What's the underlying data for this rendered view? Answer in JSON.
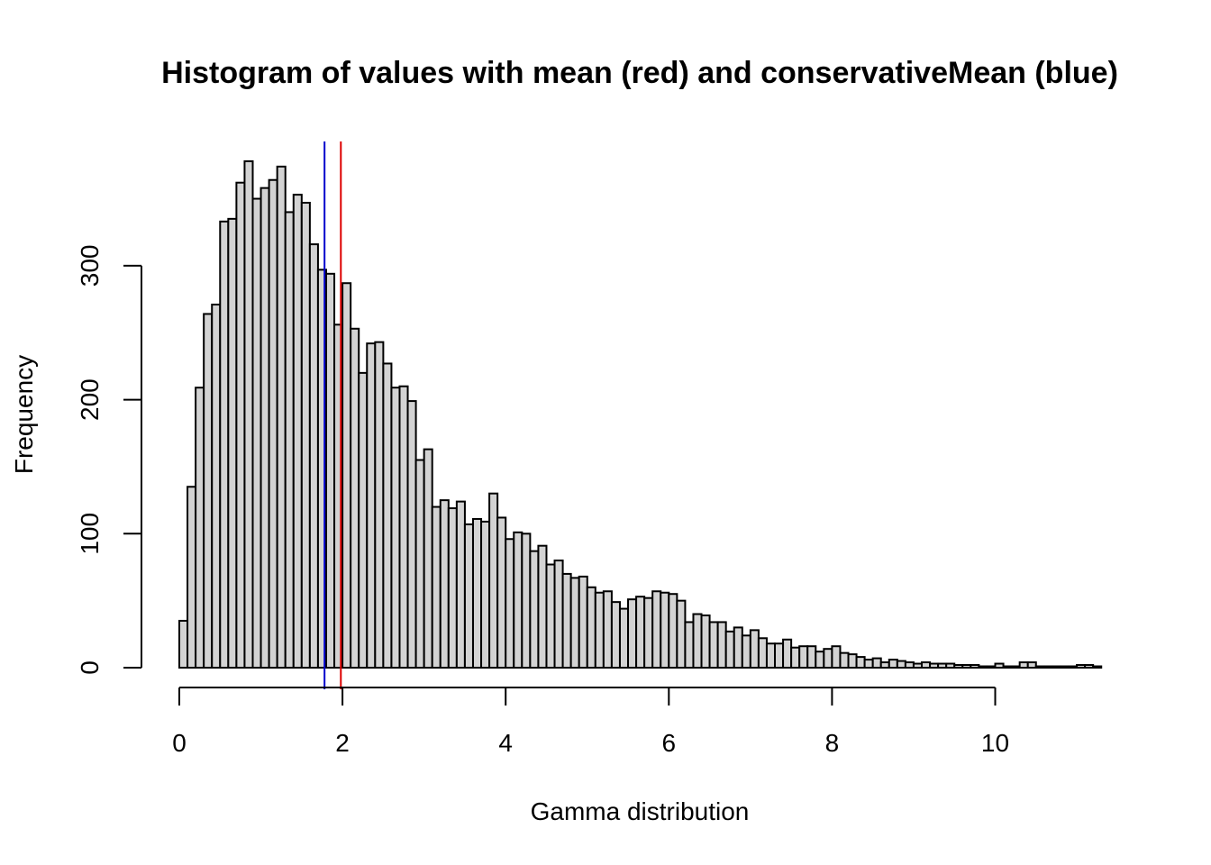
{
  "chart_data": {
    "type": "bar",
    "title": "Histogram of values with mean (red) and conservativeMean (blue)",
    "xlabel": "Gamma distribution",
    "ylabel": "Frequency",
    "xlim": [
      0,
      11.3
    ],
    "ylim": [
      0,
      380
    ],
    "bin_width": 0.1,
    "x_ticks": [
      0,
      2,
      4,
      6,
      8,
      10
    ],
    "y_ticks": [
      0,
      100,
      200,
      300
    ],
    "bin_start": 0,
    "values": [
      35,
      135,
      209,
      264,
      271,
      333,
      335,
      362,
      378,
      350,
      358,
      364,
      374,
      340,
      353,
      347,
      316,
      297,
      294,
      256,
      287,
      253,
      220,
      242,
      243,
      227,
      209,
      210,
      199,
      155,
      163,
      120,
      125,
      119,
      124,
      107,
      111,
      109,
      130,
      112,
      96,
      101,
      100,
      87,
      91,
      77,
      80,
      70,
      67,
      68,
      60,
      56,
      57,
      49,
      44,
      51,
      53,
      52,
      57,
      56,
      55,
      50,
      34,
      40,
      39,
      34,
      34,
      27,
      30,
      24,
      28,
      22,
      18,
      18,
      21,
      15,
      16,
      16,
      12,
      14,
      16,
      11,
      10,
      8,
      6,
      7,
      4,
      6,
      5,
      4,
      3,
      4,
      3,
      3,
      3,
      2,
      2,
      2,
      1,
      1,
      3,
      1,
      1,
      4,
      4,
      1,
      1,
      1,
      1,
      1,
      2,
      2,
      1
    ],
    "vlines": [
      {
        "name": "conservativeMean",
        "x": 1.78,
        "color": "#0000cc"
      },
      {
        "name": "mean",
        "x": 1.98,
        "color": "#dd0000"
      }
    ],
    "colors": {
      "bar_fill": "#d3d3d3",
      "bar_stroke": "#000000"
    }
  }
}
